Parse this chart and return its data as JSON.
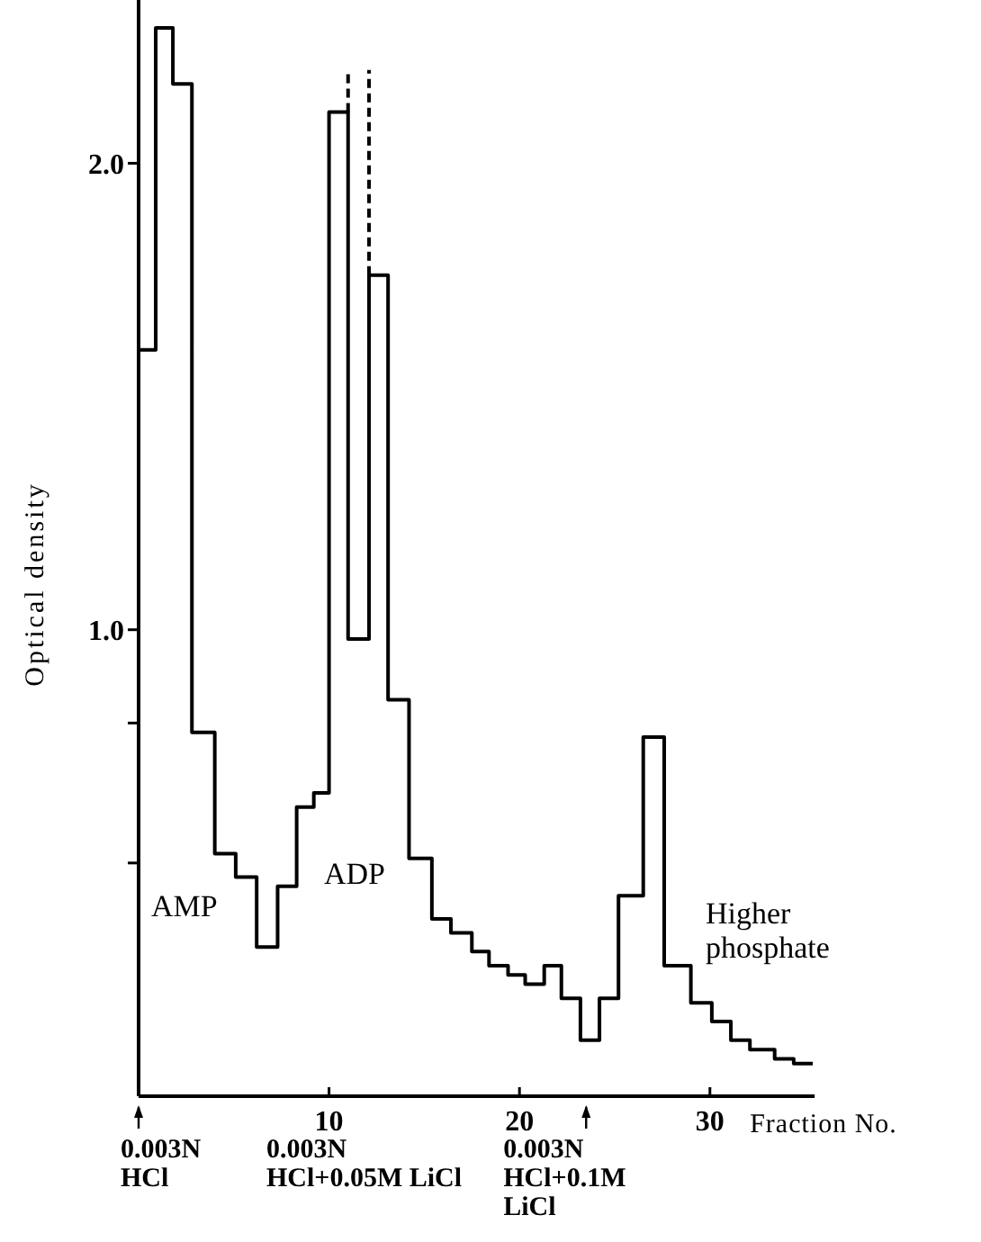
{
  "chart_data": {
    "type": "step",
    "xlabel": "Fraction No.",
    "ylabel": "Optical density",
    "series": [
      {
        "color": "#000000",
        "x": [
          0,
          0.9,
          1.8,
          2.8,
          4.0,
          5.1,
          6.2,
          7.3,
          8.3,
          9.2,
          10.0,
          11.0,
          12.1,
          13.1,
          14.2,
          15.4,
          16.4,
          17.5,
          18.4,
          19.4,
          20.3,
          21.3,
          22.2,
          23.2,
          24.2,
          25.2,
          26.5,
          27.6,
          29.0,
          30.1,
          31.1,
          32.1,
          33.4,
          34.4,
          35.4
        ],
        "values": [
          1.6,
          2.29,
          2.17,
          0.78,
          0.52,
          0.47,
          0.32,
          0.45,
          0.62,
          0.65,
          2.11,
          0.98,
          1.76,
          0.85,
          0.51,
          0.38,
          0.35,
          0.31,
          0.28,
          0.26,
          0.24,
          0.28,
          0.21,
          0.12,
          0.21,
          0.43,
          0.77,
          0.28,
          0.2,
          0.16,
          0.12,
          0.1,
          0.08,
          0.07,
          0.07
        ]
      },
      {
        "type": "line",
        "line_style": "dashed",
        "color": "#000000",
        "x": [
          11.0,
          11.0
        ],
        "values": [
          2.11,
          2.2
        ]
      },
      {
        "type": "line",
        "line_style": "dashed",
        "color": "#000000",
        "x": [
          12.1,
          12.1
        ],
        "values": [
          1.76,
          2.2
        ]
      }
    ],
    "xlim": [
      0,
      35.5
    ],
    "xticks": [
      10,
      20,
      30
    ],
    "ylim": [
      0,
      2.35
    ],
    "yticks": [
      {
        "value": 0.5,
        "label": null
      },
      {
        "value": 0.8,
        "label": null
      },
      {
        "value": 1.0,
        "label": "1.0"
      },
      {
        "value": 2.0,
        "label": "2.0"
      }
    ],
    "grid": false,
    "ref_lines": [
      {
        "axis": "x",
        "value": 0,
        "label": "0.003N HCl"
      },
      {
        "axis": "x",
        "value": 23.5,
        "label": "0.003N HCl+0.1M LiCl"
      }
    ],
    "annotations": [
      "AMP",
      "ADP",
      "Higher phosphate",
      "0.003N HCl+0.05M LiCl"
    ]
  }
}
